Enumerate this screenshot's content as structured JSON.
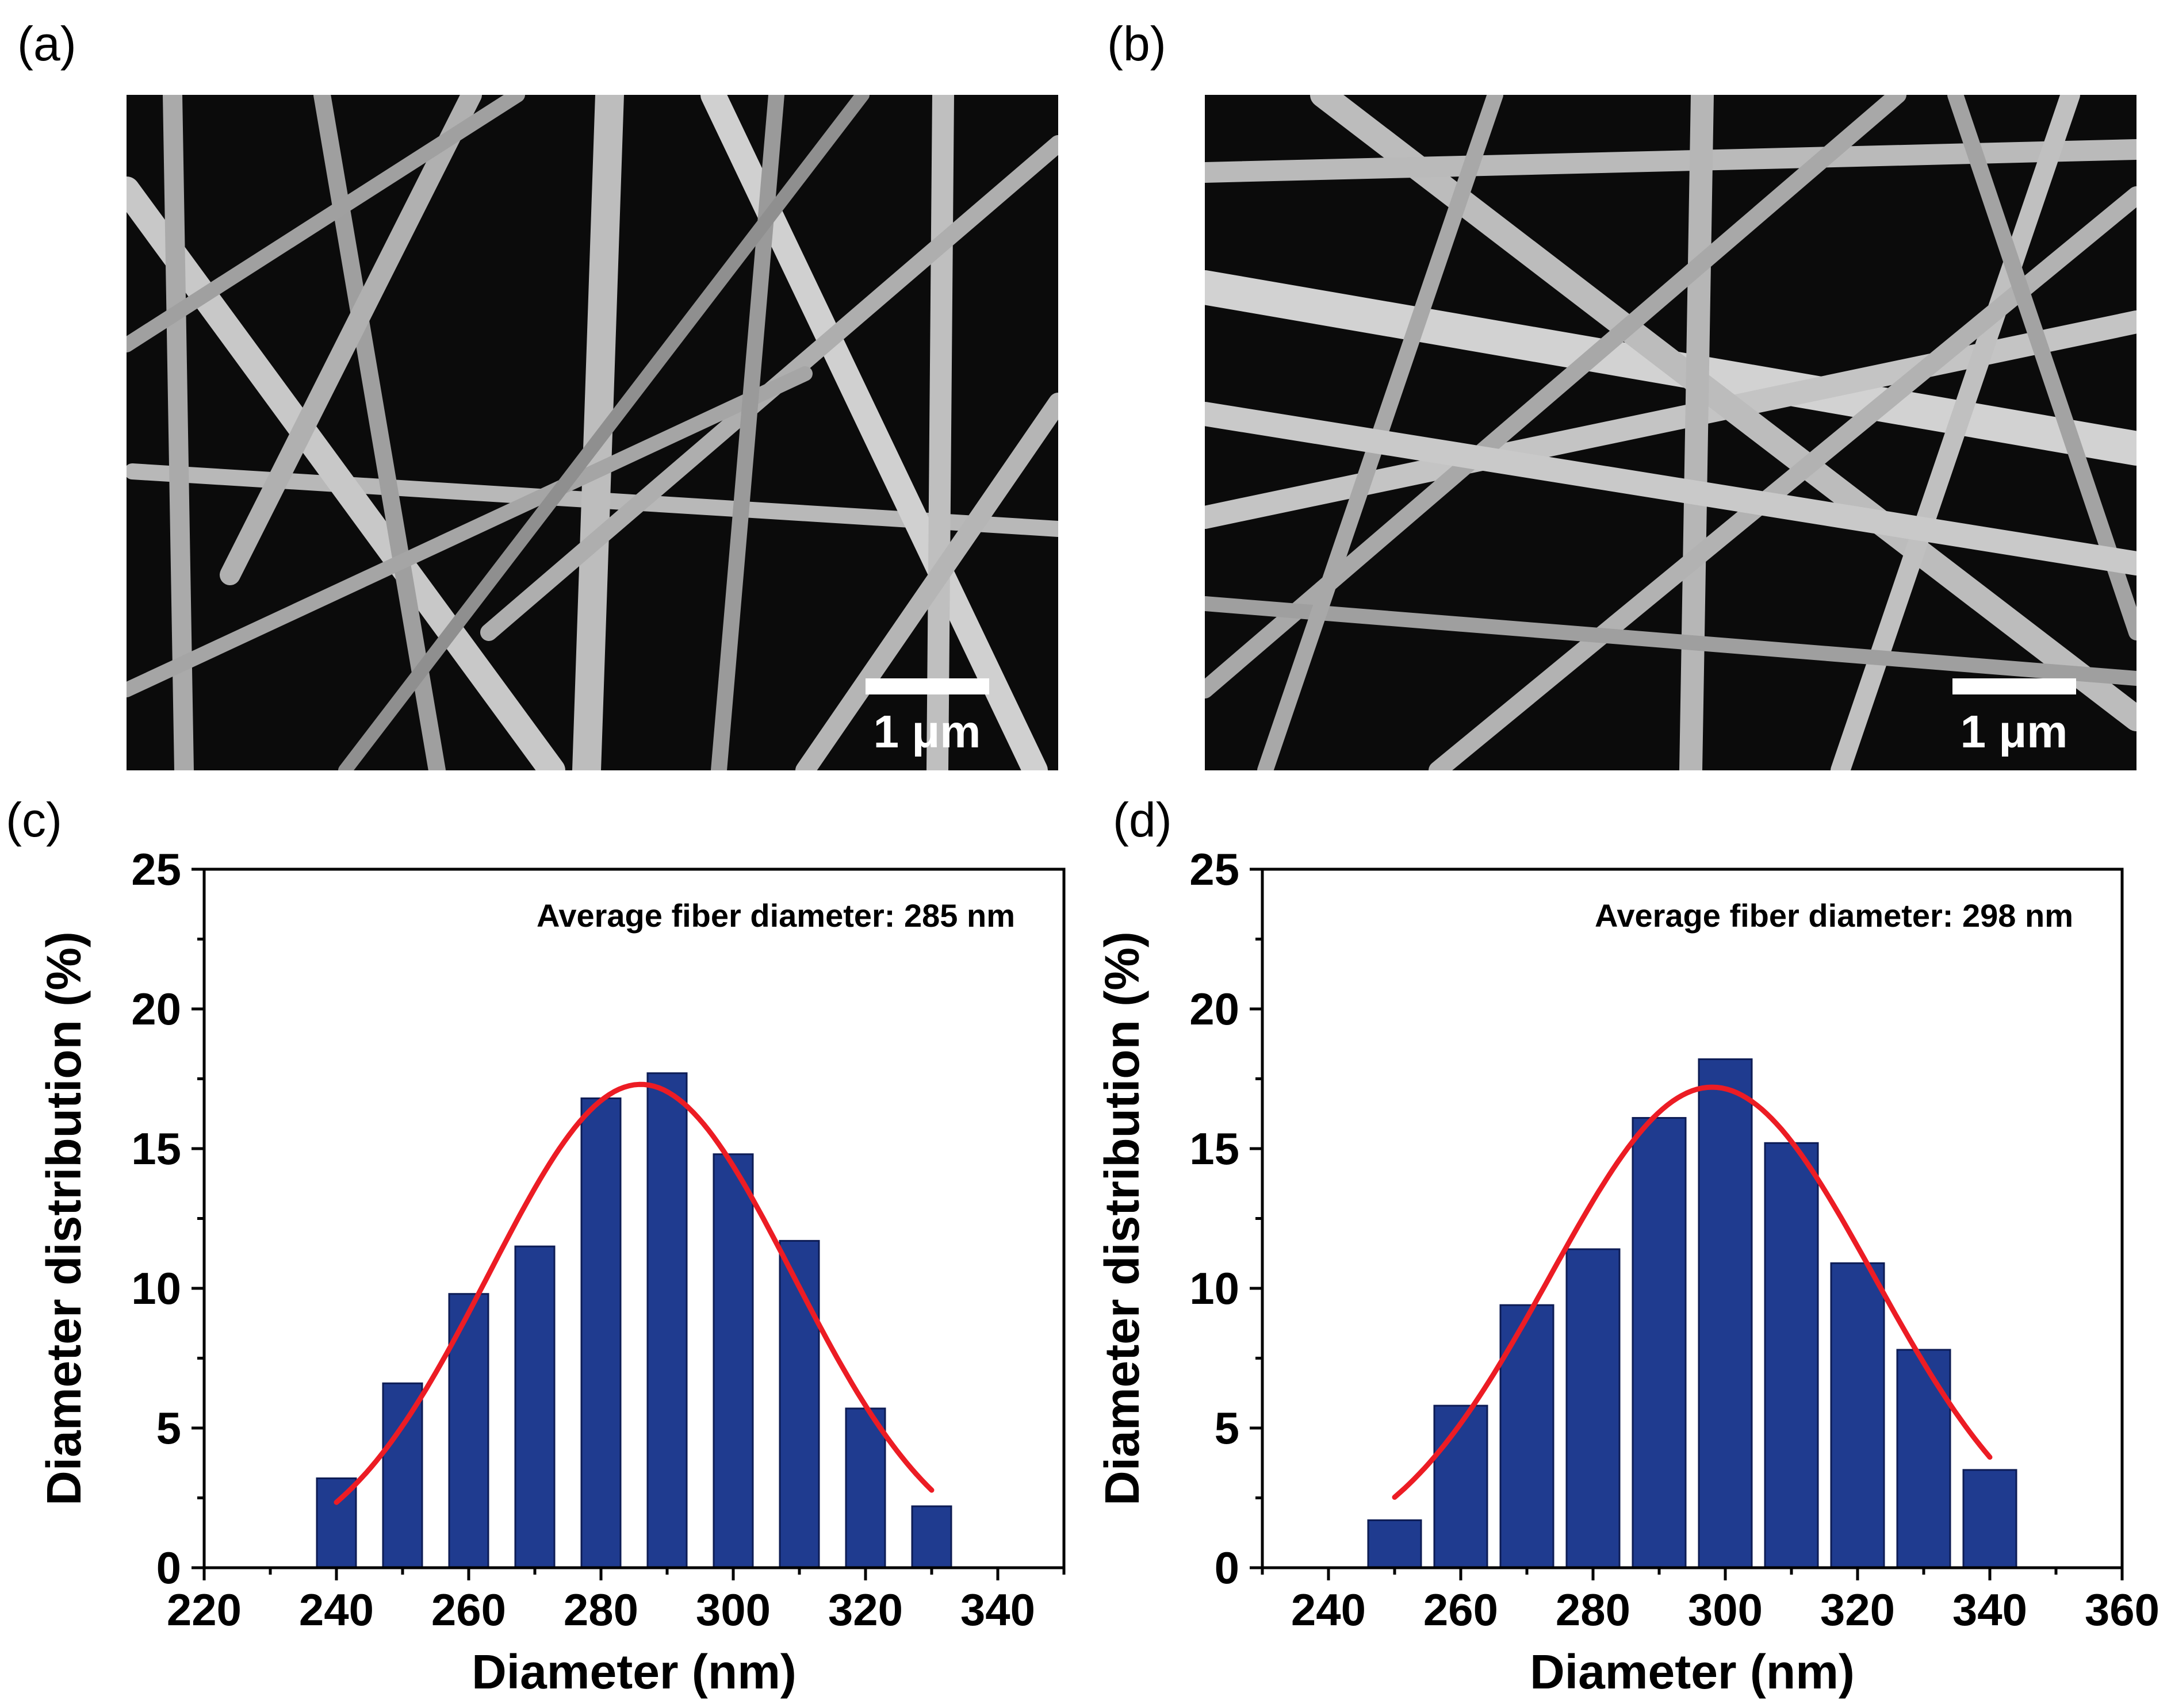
{
  "panels": {
    "a": {
      "label": "(a)",
      "scale_bar": "1 μm"
    },
    "b": {
      "label": "(b)",
      "scale_bar": "1 μm"
    },
    "c": {
      "label": "(c)"
    },
    "d": {
      "label": "(d)"
    }
  },
  "chart_data": [
    {
      "type": "bar",
      "panel": "(c)",
      "annotation": "Average fiber diameter: 285 nm",
      "xlabel": "Diameter (nm)",
      "ylabel": "Diameter distribution (%)",
      "xlim": [
        220,
        350
      ],
      "ylim": [
        0,
        25
      ],
      "xticks": [
        220,
        240,
        260,
        280,
        300,
        320,
        340
      ],
      "yticks": [
        0,
        5,
        10,
        15,
        20,
        25
      ],
      "categories": [
        240,
        250,
        260,
        270,
        280,
        290,
        300,
        310,
        320,
        330
      ],
      "values": [
        3.2,
        6.6,
        9.8,
        11.5,
        16.8,
        17.7,
        14.8,
        11.7,
        5.7,
        2.2
      ],
      "fit": {
        "type": "gaussian",
        "mean": 286,
        "peak": 17.3,
        "sigma": 23,
        "x_range": [
          240,
          330
        ]
      }
    },
    {
      "type": "bar",
      "panel": "(d)",
      "annotation": "Average fiber diameter: 298 nm",
      "xlabel": "Diameter (nm)",
      "ylabel": "Diameter distribution (%)",
      "xlim": [
        230,
        360
      ],
      "ylim": [
        0,
        25
      ],
      "xticks": [
        240,
        260,
        280,
        300,
        320,
        340,
        360
      ],
      "yticks": [
        0,
        5,
        10,
        15,
        20,
        25
      ],
      "categories": [
        250,
        260,
        270,
        280,
        290,
        300,
        310,
        320,
        330,
        340
      ],
      "values": [
        1.7,
        5.8,
        9.4,
        11.4,
        16.1,
        18.2,
        15.2,
        10.9,
        7.8,
        3.5
      ],
      "fit": {
        "type": "gaussian",
        "mean": 298,
        "peak": 17.2,
        "sigma": 24.5,
        "x_range": [
          250,
          340
        ]
      }
    }
  ]
}
